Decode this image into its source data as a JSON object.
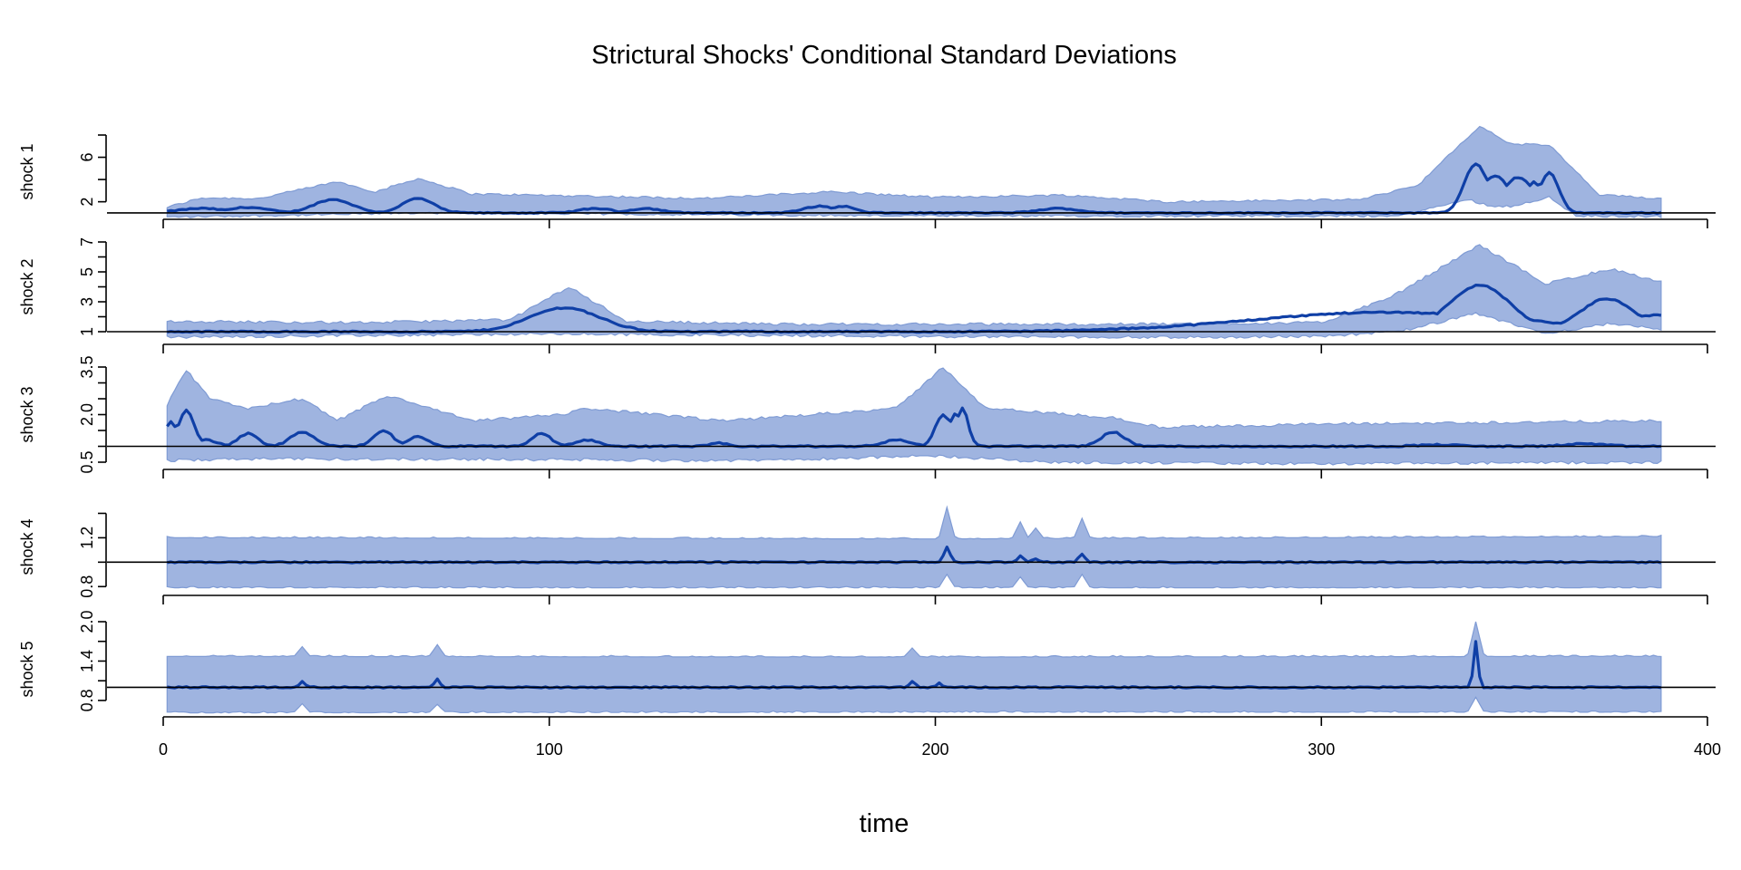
{
  "chart_data": {
    "type": "area",
    "title": "Strictural Shocks' Conditional Standard Deviations",
    "xlabel": "time",
    "xlim": [
      0,
      400
    ],
    "x_ticks": [
      "0",
      "100",
      "200",
      "300",
      "400"
    ],
    "n_obs": 388,
    "band_color": "#9fb4e0",
    "band_edge_color": "#7f9bd4",
    "line_color": "#0f3fa6",
    "reference_color": "#000000",
    "panels": [
      {
        "ylabel": "shock 1",
        "ylim": [
          1.4,
          8
        ],
        "y_ticks": [
          "2",
          "6"
        ],
        "y_tick_values": [
          2,
          6
        ],
        "y_minor": [
          4,
          8
        ],
        "reference": 1,
        "median_peaks": [
          [
            1,
            1.0,
            0.02
          ],
          [
            10,
            1.4,
            6
          ],
          [
            22,
            1.5,
            5
          ],
          [
            44,
            2.2,
            5
          ],
          [
            66,
            2.3,
            4
          ],
          [
            112,
            1.4,
            4
          ],
          [
            125,
            1.4,
            4
          ],
          [
            170,
            1.6,
            4
          ],
          [
            176,
            1.6,
            3
          ],
          [
            232,
            1.4,
            5
          ],
          [
            291,
            1.0,
            1.2
          ],
          [
            340,
            5.4,
            3
          ],
          [
            345,
            4.3,
            4
          ],
          [
            351,
            4.2,
            4
          ],
          [
            355,
            3.8,
            2
          ],
          [
            359,
            4.6,
            2.5
          ]
        ],
        "lower_points": [
          [
            1,
            0.62
          ],
          [
            44,
            0.85
          ],
          [
            66,
            1.0
          ],
          [
            200,
            0.72
          ],
          [
            320,
            0.72
          ],
          [
            338,
            2.2
          ],
          [
            344,
            1.6
          ],
          [
            349,
            1.6
          ],
          [
            359,
            2.4
          ],
          [
            366,
            0.7
          ],
          [
            388,
            0.68
          ]
        ],
        "upper_points": [
          [
            1,
            1.5
          ],
          [
            10,
            2.35
          ],
          [
            25,
            2.3
          ],
          [
            45,
            3.8
          ],
          [
            55,
            2.9
          ],
          [
            66,
            4.1
          ],
          [
            80,
            2.7
          ],
          [
            112,
            2.5
          ],
          [
            140,
            2.3
          ],
          [
            173,
            2.9
          ],
          [
            200,
            2.4
          ],
          [
            233,
            2.6
          ],
          [
            260,
            2.0
          ],
          [
            310,
            2.2
          ],
          [
            325,
            3.5
          ],
          [
            341,
            8.8
          ],
          [
            349,
            7.2
          ],
          [
            359,
            7.1
          ],
          [
            372,
            2.6
          ],
          [
            388,
            2.3
          ]
        ]
      },
      {
        "ylabel": "shock 2",
        "ylim": [
          1,
          7
        ],
        "y_ticks": [
          "1",
          "3",
          "5",
          "7"
        ],
        "y_tick_values": [
          1,
          3,
          5,
          7
        ],
        "y_minor": [
          2,
          4,
          6
        ],
        "reference": 1,
        "median_peaks": [
          [
            104,
            2.6,
            9
          ],
          [
            150,
            1.05,
            1.2
          ],
          [
            248,
            1.2,
            2.5
          ],
          [
            260,
            0.9,
            1.0
          ],
          [
            317,
            2.3,
            35
          ],
          [
            341,
            4.1,
            8
          ],
          [
            346,
            3.3,
            4
          ],
          [
            359,
            1.4,
            20
          ],
          [
            374,
            3.2,
            7
          ],
          [
            386,
            2.1,
            8
          ]
        ],
        "lower_points": [
          [
            1,
            0.62
          ],
          [
            30,
            0.7
          ],
          [
            100,
            0.85
          ],
          [
            200,
            0.68
          ],
          [
            270,
            0.62
          ],
          [
            300,
            0.7
          ],
          [
            320,
            1.0
          ],
          [
            340,
            2.2
          ],
          [
            358,
            0.9
          ],
          [
            374,
            1.5
          ],
          [
            388,
            1.2
          ]
        ],
        "upper_points": [
          [
            1,
            1.7
          ],
          [
            50,
            1.6
          ],
          [
            90,
            1.8
          ],
          [
            105,
            4.0
          ],
          [
            120,
            1.7
          ],
          [
            160,
            1.5
          ],
          [
            250,
            1.5
          ],
          [
            300,
            1.6
          ],
          [
            318,
            3.3
          ],
          [
            341,
            6.8
          ],
          [
            358,
            4.2
          ],
          [
            375,
            5.2
          ],
          [
            388,
            4.3
          ]
        ]
      },
      {
        "ylabel": "shock 3",
        "ylim": [
          0.5,
          3.5
        ],
        "y_ticks": [
          "0.5",
          "2.0",
          "3.5"
        ],
        "y_tick_values": [
          0.5,
          2.0,
          3.5
        ],
        "y_minor": [
          1,
          1.5,
          2.5,
          3
        ],
        "reference": 1,
        "median_peaks": [
          [
            2,
            1.8,
            1.5
          ],
          [
            6,
            2.15,
            2
          ],
          [
            11,
            1.2,
            3
          ],
          [
            22,
            1.4,
            2.5
          ],
          [
            36,
            1.45,
            3
          ],
          [
            57,
            1.5,
            2.5
          ],
          [
            66,
            1.3,
            2.5
          ],
          [
            98,
            1.4,
            2.5
          ],
          [
            110,
            1.2,
            3
          ],
          [
            144,
            1.1,
            2
          ],
          [
            190,
            1.2,
            3.5
          ],
          [
            202,
            2.0,
            2
          ],
          [
            205,
            2.0,
            1.5
          ],
          [
            207,
            2.2,
            1.5
          ],
          [
            246,
            1.45,
            3
          ],
          [
            330,
            1.05,
            5
          ],
          [
            368,
            1.08,
            5
          ]
        ],
        "lower_points": [
          [
            1,
            0.55
          ],
          [
            20,
            0.6
          ],
          [
            70,
            0.6
          ],
          [
            150,
            0.55
          ],
          [
            200,
            0.7
          ],
          [
            230,
            0.5
          ],
          [
            300,
            0.45
          ],
          [
            388,
            0.5
          ]
        ],
        "upper_points": [
          [
            1,
            2.3
          ],
          [
            6,
            3.4
          ],
          [
            12,
            2.5
          ],
          [
            22,
            2.2
          ],
          [
            36,
            2.5
          ],
          [
            45,
            1.8
          ],
          [
            58,
            2.6
          ],
          [
            80,
            1.8
          ],
          [
            103,
            2.0
          ],
          [
            110,
            2.2
          ],
          [
            145,
            1.8
          ],
          [
            190,
            2.2
          ],
          [
            202,
            3.5
          ],
          [
            213,
            2.2
          ],
          [
            246,
            1.9
          ],
          [
            258,
            1.6
          ],
          [
            300,
            1.7
          ],
          [
            388,
            1.8
          ]
        ]
      },
      {
        "ylabel": "shock 4",
        "ylim": [
          0.75,
          1.5
        ],
        "y_ticks": [
          "0.8",
          "1.2"
        ],
        "y_tick_values": [
          0.8,
          1.2
        ],
        "y_minor": [
          1.0,
          1.4
        ],
        "reference": 1,
        "median_peaks": [
          [
            203,
            1.12,
            0.8
          ],
          [
            222,
            1.05,
            0.8
          ],
          [
            226,
            1.03,
            0.8
          ],
          [
            238,
            1.07,
            0.8
          ],
          [
            340,
            1.0,
            0.5
          ]
        ],
        "lower_points": [
          [
            1,
            0.79
          ],
          [
            200,
            0.79
          ],
          [
            388,
            0.79
          ]
        ],
        "upper_points": [
          [
            1,
            1.2
          ],
          [
            200,
            1.19
          ],
          [
            388,
            1.21
          ]
        ],
        "upper_spikes": [
          [
            203,
            1.45
          ],
          [
            222,
            1.33
          ],
          [
            226,
            1.28
          ],
          [
            238,
            1.36
          ]
        ],
        "lower_spikes": [
          [
            203,
            0.9
          ],
          [
            222,
            0.88
          ],
          [
            238,
            0.9
          ]
        ]
      },
      {
        "ylabel": "shock 5",
        "ylim": [
          0.55,
          2.0
        ],
        "y_ticks": [
          "0.8",
          "1.4",
          "2.0"
        ],
        "y_tick_values": [
          0.8,
          1.4,
          2.0
        ],
        "y_minor": [
          1.1,
          1.7
        ],
        "reference": 1,
        "median_peaks": [
          [
            36,
            1.1,
            0.7
          ],
          [
            71,
            1.12,
            0.7
          ],
          [
            194,
            1.1,
            0.7
          ],
          [
            201,
            1.06,
            0.7
          ],
          [
            340,
            1.7,
            0.6
          ]
        ],
        "lower_points": [
          [
            1,
            0.61
          ],
          [
            200,
            0.62
          ],
          [
            388,
            0.62
          ]
        ],
        "upper_points": [
          [
            1,
            1.47
          ],
          [
            200,
            1.46
          ],
          [
            388,
            1.47
          ]
        ],
        "upper_spikes": [
          [
            36,
            1.62
          ],
          [
            71,
            1.65
          ],
          [
            194,
            1.6
          ],
          [
            340,
            2.0
          ]
        ],
        "lower_spikes": [
          [
            36,
            0.75
          ],
          [
            71,
            0.74
          ],
          [
            340,
            0.85
          ]
        ]
      }
    ]
  }
}
